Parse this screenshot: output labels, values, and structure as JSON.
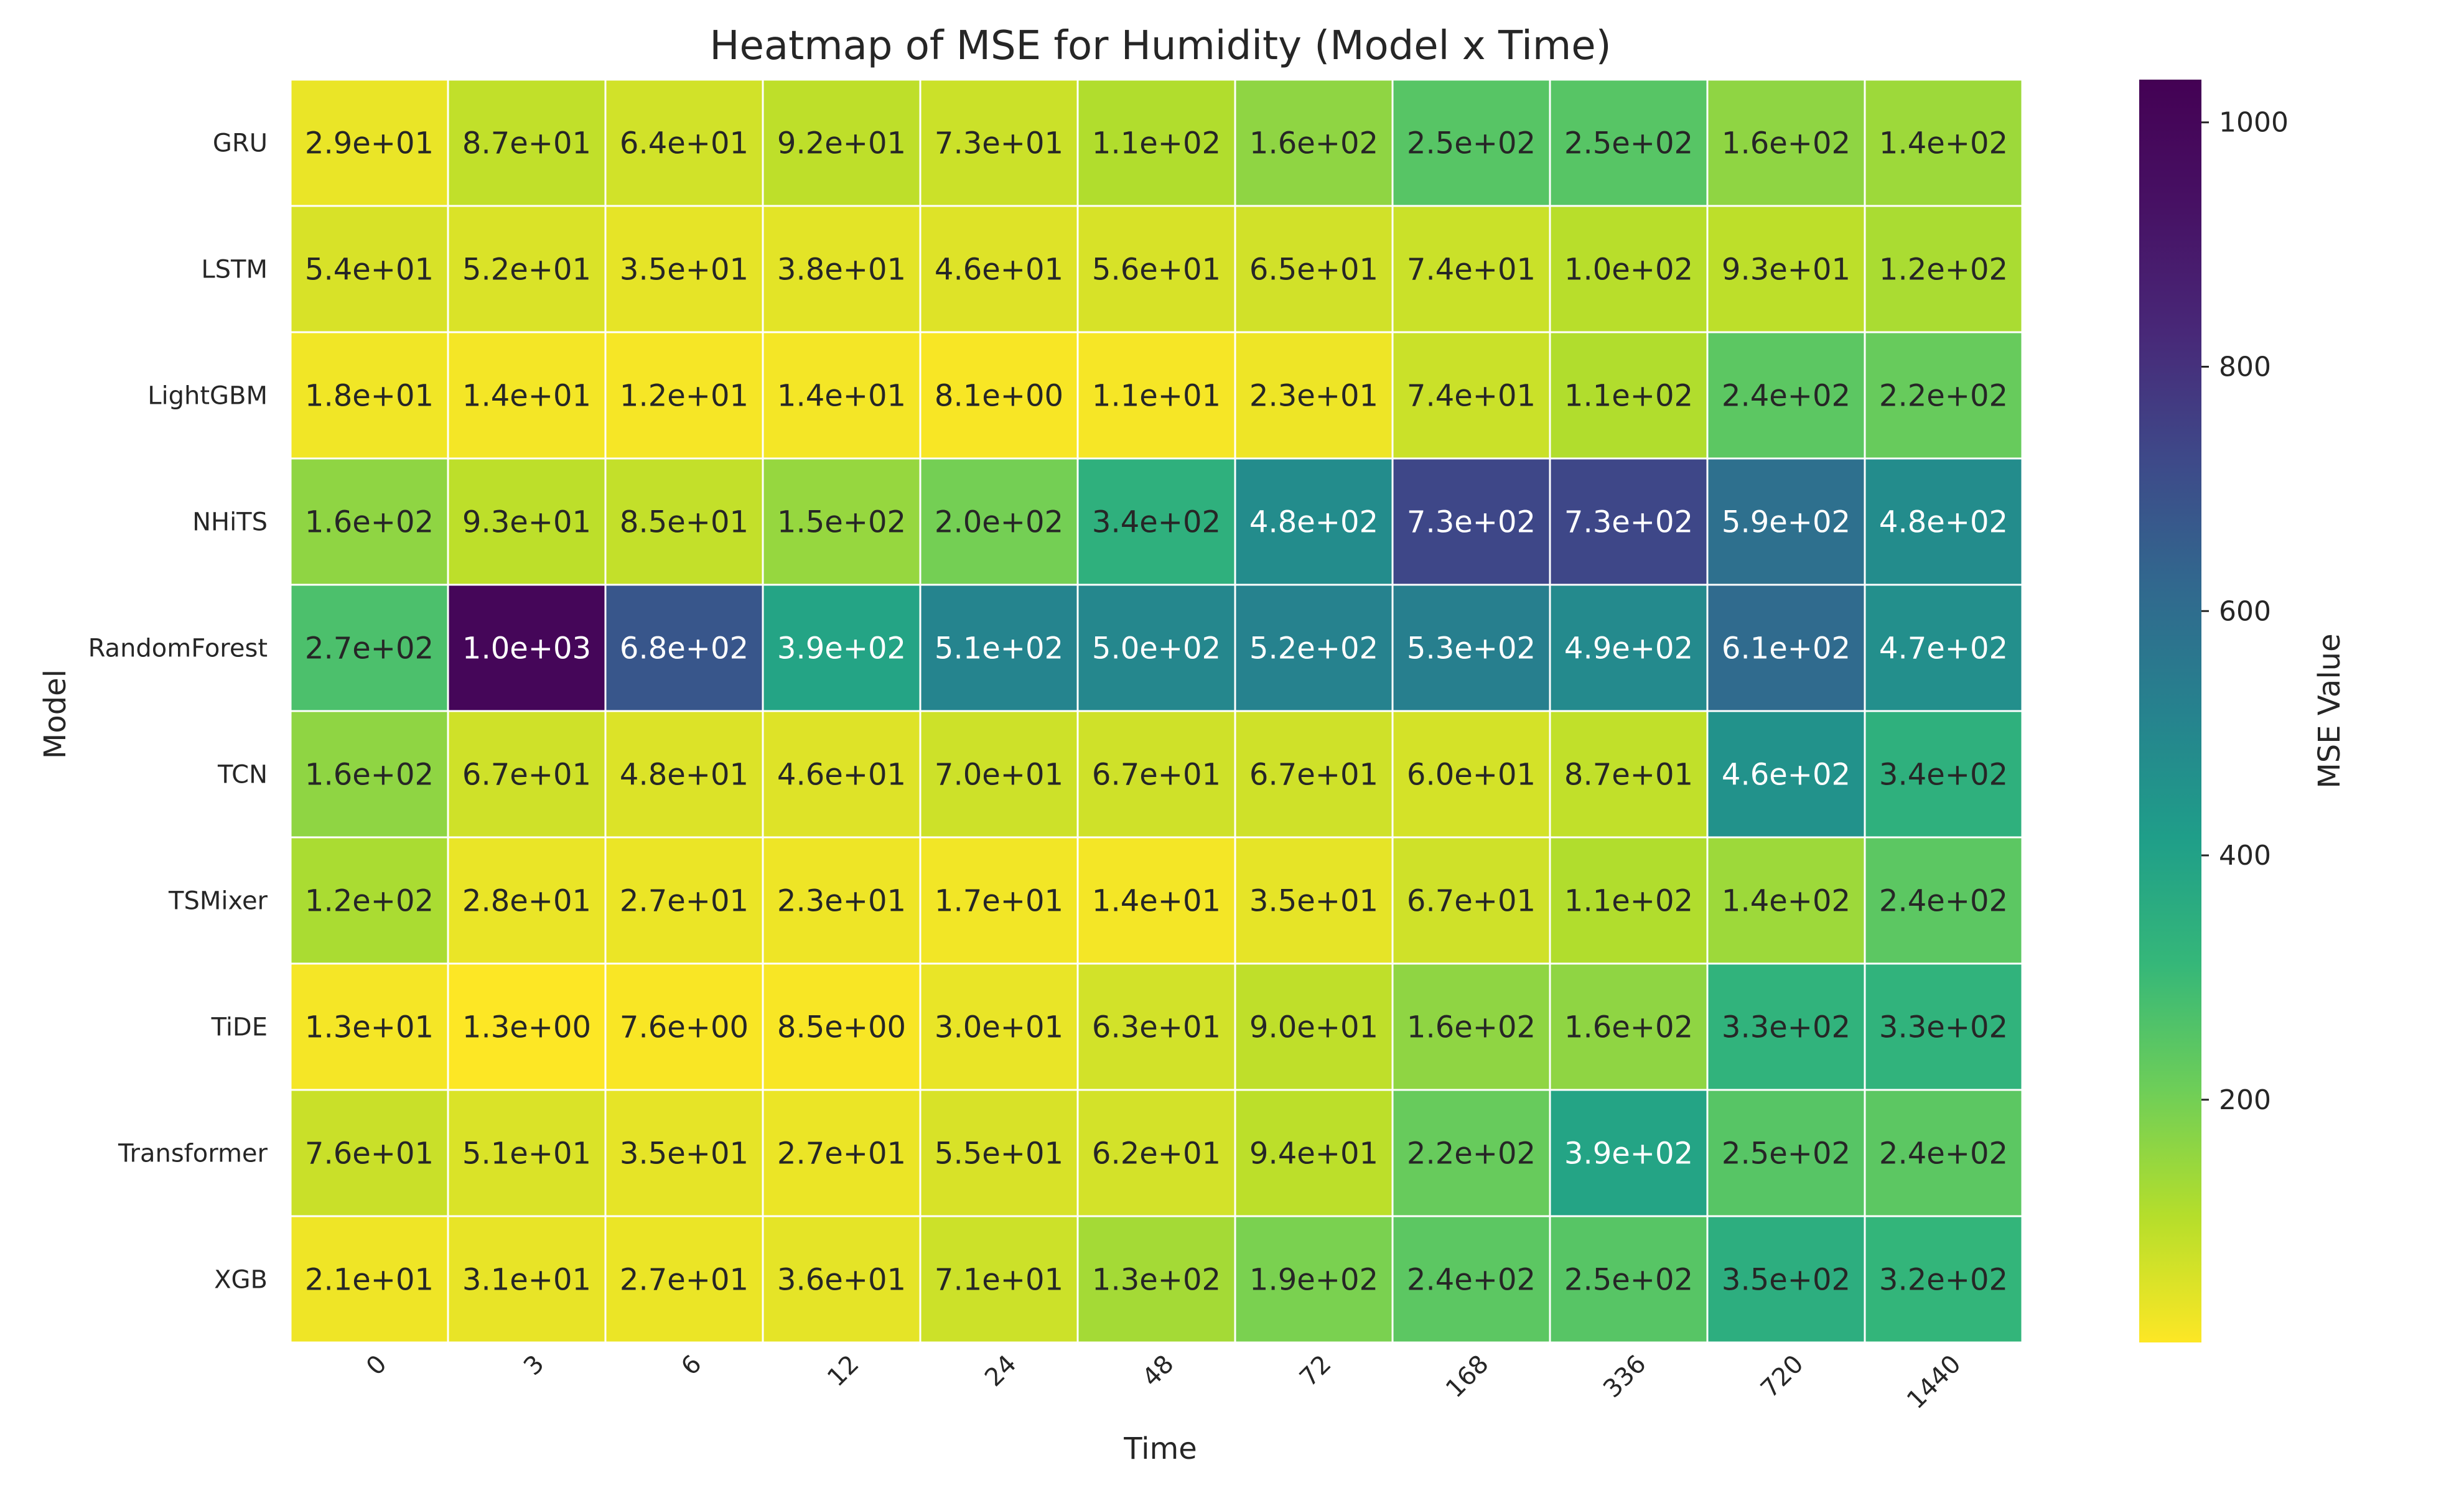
{
  "chart_data": {
    "type": "heatmap",
    "title": "Heatmap of MSE for Humidity (Model x Time)",
    "xlabel": "Time",
    "ylabel": "Model",
    "colorbar_label": "MSE Value",
    "colormap": "viridis_r",
    "color_range": [
      1.3,
      1035
    ],
    "colorbar_ticks": [
      "200",
      "400",
      "600",
      "800",
      "1000"
    ],
    "x": [
      "0",
      "3",
      "6",
      "12",
      "24",
      "48",
      "72",
      "168",
      "336",
      "720",
      "1440"
    ],
    "y": [
      "GRU",
      "LSTM",
      "LightGBM",
      "NHiTS",
      "RandomForest",
      "TCN",
      "TSMixer",
      "TiDE",
      "Transformer",
      "XGB"
    ],
    "labels": [
      [
        "2.9e+01",
        "8.7e+01",
        "6.4e+01",
        "9.2e+01",
        "7.3e+01",
        "1.1e+02",
        "1.6e+02",
        "2.5e+02",
        "2.5e+02",
        "1.6e+02",
        "1.4e+02"
      ],
      [
        "5.4e+01",
        "5.2e+01",
        "3.5e+01",
        "3.8e+01",
        "4.6e+01",
        "5.6e+01",
        "6.5e+01",
        "7.4e+01",
        "1.0e+02",
        "9.3e+01",
        "1.2e+02"
      ],
      [
        "1.8e+01",
        "1.4e+01",
        "1.2e+01",
        "1.4e+01",
        "8.1e+00",
        "1.1e+01",
        "2.3e+01",
        "7.4e+01",
        "1.1e+02",
        "2.4e+02",
        "2.2e+02"
      ],
      [
        "1.6e+02",
        "9.3e+01",
        "8.5e+01",
        "1.5e+02",
        "2.0e+02",
        "3.4e+02",
        "4.8e+02",
        "7.3e+02",
        "7.3e+02",
        "5.9e+02",
        "4.8e+02"
      ],
      [
        "2.7e+02",
        "1.0e+03",
        "6.8e+02",
        "3.9e+02",
        "5.1e+02",
        "5.0e+02",
        "5.2e+02",
        "5.3e+02",
        "4.9e+02",
        "6.1e+02",
        "4.7e+02"
      ],
      [
        "1.6e+02",
        "6.7e+01",
        "4.8e+01",
        "4.6e+01",
        "7.0e+01",
        "6.7e+01",
        "6.7e+01",
        "6.0e+01",
        "8.7e+01",
        "4.6e+02",
        "3.4e+02"
      ],
      [
        "1.2e+02",
        "2.8e+01",
        "2.7e+01",
        "2.3e+01",
        "1.7e+01",
        "1.4e+01",
        "3.5e+01",
        "6.7e+01",
        "1.1e+02",
        "1.4e+02",
        "2.4e+02"
      ],
      [
        "1.3e+01",
        "1.3e+00",
        "7.6e+00",
        "8.5e+00",
        "3.0e+01",
        "6.3e+01",
        "9.0e+01",
        "1.6e+02",
        "1.6e+02",
        "3.3e+02",
        "3.3e+02"
      ],
      [
        "7.6e+01",
        "5.1e+01",
        "3.5e+01",
        "2.7e+01",
        "5.5e+01",
        "6.2e+01",
        "9.4e+01",
        "2.2e+02",
        "3.9e+02",
        "2.5e+02",
        "2.4e+02"
      ],
      [
        "2.1e+01",
        "3.1e+01",
        "2.7e+01",
        "3.6e+01",
        "7.1e+01",
        "1.3e+02",
        "1.9e+02",
        "2.4e+02",
        "2.5e+02",
        "3.5e+02",
        "3.2e+02"
      ]
    ]
  }
}
